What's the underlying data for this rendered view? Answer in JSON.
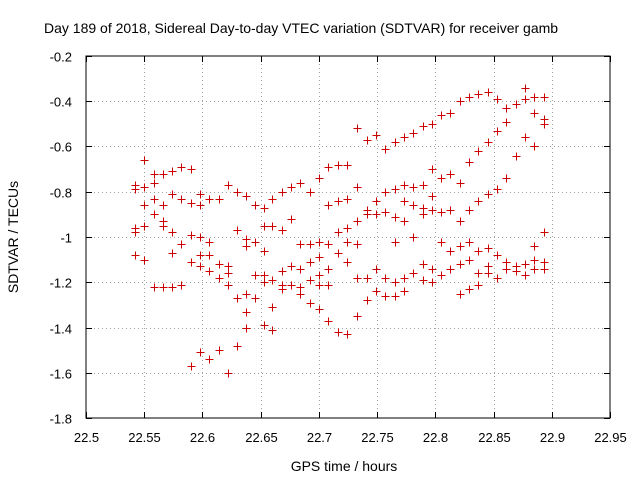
{
  "chart_data": {
    "type": "scatter",
    "title": "Day 189 of 2018, Sidereal Day-to-day VTEC variation (SDTVAR) for receiver gamb",
    "xlabel": "GPS time / hours",
    "ylabel": "SDTVAR / TECUs",
    "xlim": [
      22.5,
      22.95
    ],
    "ylim": [
      -1.8,
      -0.2
    ],
    "xticks": [
      "22.5",
      "22.55",
      "22.6",
      "22.65",
      "22.7",
      "22.75",
      "22.8",
      "22.85",
      "22.9",
      "22.95"
    ],
    "yticks": [
      "-0.2",
      "-0.4",
      "-0.6",
      "-0.8",
      "-1",
      "-1.2",
      "-1.4",
      "-1.6",
      "-1.8"
    ],
    "grid": true,
    "marker": "+",
    "color": "#cc0000",
    "series": [
      {
        "name": "SDTVAR",
        "points": [
          [
            22.542,
            -0.77
          ],
          [
            22.542,
            -0.79
          ],
          [
            22.542,
            -0.96
          ],
          [
            22.542,
            -0.98
          ],
          [
            22.542,
            -1.08
          ],
          [
            22.55,
            -0.66
          ],
          [
            22.55,
            -0.78
          ],
          [
            22.55,
            -0.86
          ],
          [
            22.55,
            -0.95
          ],
          [
            22.55,
            -1.1
          ],
          [
            22.558,
            -0.72
          ],
          [
            22.558,
            -0.76
          ],
          [
            22.558,
            -0.83
          ],
          [
            22.558,
            -0.9
          ],
          [
            22.558,
            -1.22
          ],
          [
            22.566,
            -0.72
          ],
          [
            22.566,
            -0.86
          ],
          [
            22.566,
            -0.93
          ],
          [
            22.566,
            -0.95
          ],
          [
            22.566,
            -1.22
          ],
          [
            22.574,
            -0.71
          ],
          [
            22.574,
            -0.81
          ],
          [
            22.574,
            -0.98
          ],
          [
            22.574,
            -1.07
          ],
          [
            22.574,
            -1.22
          ],
          [
            22.582,
            -0.69
          ],
          [
            22.582,
            -0.83
          ],
          [
            22.582,
            -1.03
          ],
          [
            22.582,
            -1.21
          ],
          [
            22.59,
            -0.7
          ],
          [
            22.59,
            -0.85
          ],
          [
            22.59,
            -0.99
          ],
          [
            22.59,
            -1.11
          ],
          [
            22.59,
            -1.57
          ],
          [
            22.598,
            -0.81
          ],
          [
            22.598,
            -0.86
          ],
          [
            22.598,
            -1.0
          ],
          [
            22.598,
            -1.08
          ],
          [
            22.598,
            -1.13
          ],
          [
            22.598,
            -1.51
          ],
          [
            22.606,
            -0.83
          ],
          [
            22.606,
            -1.02
          ],
          [
            22.606,
            -1.08
          ],
          [
            22.606,
            -1.15
          ],
          [
            22.606,
            -1.54
          ],
          [
            22.614,
            -0.83
          ],
          [
            22.614,
            -1.12
          ],
          [
            22.614,
            -1.18
          ],
          [
            22.614,
            -1.5
          ],
          [
            22.622,
            -0.77
          ],
          [
            22.622,
            -1.13
          ],
          [
            22.622,
            -1.16
          ],
          [
            22.622,
            -1.21
          ],
          [
            22.622,
            -1.6
          ],
          [
            22.63,
            -0.8
          ],
          [
            22.63,
            -0.97
          ],
          [
            22.63,
            -1.27
          ],
          [
            22.63,
            -1.48
          ],
          [
            22.637,
            -0.82
          ],
          [
            22.637,
            -1.01
          ],
          [
            22.637,
            -1.04
          ],
          [
            22.637,
            -1.25
          ],
          [
            22.637,
            -1.33
          ],
          [
            22.637,
            -1.4
          ],
          [
            22.645,
            -0.86
          ],
          [
            22.645,
            -1.02
          ],
          [
            22.645,
            -1.17
          ],
          [
            22.645,
            -1.27
          ],
          [
            22.653,
            -0.87
          ],
          [
            22.653,
            -0.95
          ],
          [
            22.653,
            -1.06
          ],
          [
            22.653,
            -1.17
          ],
          [
            22.653,
            -1.2
          ],
          [
            22.653,
            -1.39
          ],
          [
            22.66,
            -0.83
          ],
          [
            22.66,
            -0.95
          ],
          [
            22.66,
            -1.19
          ],
          [
            22.66,
            -1.31
          ],
          [
            22.66,
            -1.41
          ],
          [
            22.668,
            -0.8
          ],
          [
            22.668,
            -0.97
          ],
          [
            22.668,
            -1.15
          ],
          [
            22.668,
            -1.21
          ],
          [
            22.668,
            -1.23
          ],
          [
            22.676,
            -0.78
          ],
          [
            22.676,
            -0.92
          ],
          [
            22.676,
            -1.13
          ],
          [
            22.676,
            -1.21
          ],
          [
            22.684,
            -0.76
          ],
          [
            22.684,
            -1.03
          ],
          [
            22.684,
            -1.14
          ],
          [
            22.684,
            -1.22
          ],
          [
            22.684,
            -1.25
          ],
          [
            22.692,
            -0.8
          ],
          [
            22.692,
            -1.03
          ],
          [
            22.692,
            -1.11
          ],
          [
            22.692,
            -1.19
          ],
          [
            22.692,
            -1.29
          ],
          [
            22.7,
            -0.74
          ],
          [
            22.7,
            -1.02
          ],
          [
            22.7,
            -1.09
          ],
          [
            22.7,
            -1.17
          ],
          [
            22.7,
            -1.21
          ],
          [
            22.7,
            -1.32
          ],
          [
            22.708,
            -0.69
          ],
          [
            22.708,
            -0.86
          ],
          [
            22.708,
            -1.03
          ],
          [
            22.708,
            -1.14
          ],
          [
            22.708,
            -1.21
          ],
          [
            22.708,
            -1.37
          ],
          [
            22.716,
            -0.68
          ],
          [
            22.716,
            -0.84
          ],
          [
            22.716,
            -0.98
          ],
          [
            22.716,
            -1.07
          ],
          [
            22.716,
            -1.42
          ],
          [
            22.724,
            -0.68
          ],
          [
            22.724,
            -0.83
          ],
          [
            22.724,
            -0.96
          ],
          [
            22.724,
            -1.02
          ],
          [
            22.724,
            -1.11
          ],
          [
            22.724,
            -1.43
          ],
          [
            22.733,
            -0.52
          ],
          [
            22.733,
            -0.78
          ],
          [
            22.733,
            -0.93
          ],
          [
            22.733,
            -1.03
          ],
          [
            22.733,
            -1.18
          ],
          [
            22.733,
            -1.35
          ],
          [
            22.741,
            -0.57
          ],
          [
            22.741,
            -0.88
          ],
          [
            22.741,
            -0.9
          ],
          [
            22.741,
            -1.18
          ],
          [
            22.741,
            -1.28
          ],
          [
            22.749,
            -0.55
          ],
          [
            22.749,
            -0.84
          ],
          [
            22.749,
            -0.9
          ],
          [
            22.749,
            -1.14
          ],
          [
            22.749,
            -1.24
          ],
          [
            22.757,
            -0.61
          ],
          [
            22.757,
            -0.8
          ],
          [
            22.757,
            -0.89
          ],
          [
            22.757,
            -1.18
          ],
          [
            22.757,
            -1.26
          ],
          [
            22.765,
            -0.58
          ],
          [
            22.765,
            -0.79
          ],
          [
            22.765,
            -0.91
          ],
          [
            22.765,
            -1.02
          ],
          [
            22.765,
            -1.2
          ],
          [
            22.765,
            -1.26
          ],
          [
            22.773,
            -0.56
          ],
          [
            22.773,
            -0.77
          ],
          [
            22.773,
            -0.84
          ],
          [
            22.773,
            -0.93
          ],
          [
            22.773,
            -1.18
          ],
          [
            22.773,
            -1.24
          ],
          [
            22.781,
            -0.54
          ],
          [
            22.781,
            -0.78
          ],
          [
            22.781,
            -0.86
          ],
          [
            22.781,
            -1.0
          ],
          [
            22.781,
            -1.16
          ],
          [
            22.789,
            -0.51
          ],
          [
            22.789,
            -0.77
          ],
          [
            22.789,
            -0.87
          ],
          [
            22.789,
            -0.9
          ],
          [
            22.789,
            -1.12
          ],
          [
            22.789,
            -1.19
          ],
          [
            22.797,
            -0.5
          ],
          [
            22.797,
            -0.7
          ],
          [
            22.797,
            -0.82
          ],
          [
            22.797,
            -0.88
          ],
          [
            22.797,
            -1.14
          ],
          [
            22.797,
            -1.2
          ],
          [
            22.805,
            -0.46
          ],
          [
            22.805,
            -0.74
          ],
          [
            22.805,
            -0.89
          ],
          [
            22.805,
            -1.02
          ],
          [
            22.805,
            -1.17
          ],
          [
            22.813,
            -0.45
          ],
          [
            22.813,
            -0.72
          ],
          [
            22.813,
            -0.88
          ],
          [
            22.813,
            -1.06
          ],
          [
            22.813,
            -1.14
          ],
          [
            22.821,
            -0.4
          ],
          [
            22.821,
            -0.76
          ],
          [
            22.821,
            -0.93
          ],
          [
            22.821,
            -1.04
          ],
          [
            22.821,
            -1.12
          ],
          [
            22.821,
            -1.25
          ],
          [
            22.829,
            -0.38
          ],
          [
            22.829,
            -0.67
          ],
          [
            22.829,
            -0.88
          ],
          [
            22.829,
            -1.02
          ],
          [
            22.829,
            -1.1
          ],
          [
            22.829,
            -1.23
          ],
          [
            22.837,
            -0.37
          ],
          [
            22.837,
            -0.62
          ],
          [
            22.837,
            -0.84
          ],
          [
            22.837,
            -1.06
          ],
          [
            22.837,
            -1.16
          ],
          [
            22.837,
            -1.21
          ],
          [
            22.845,
            -0.36
          ],
          [
            22.845,
            -0.58
          ],
          [
            22.845,
            -0.81
          ],
          [
            22.845,
            -1.05
          ],
          [
            22.845,
            -1.13
          ],
          [
            22.845,
            -1.16
          ],
          [
            22.853,
            -0.39
          ],
          [
            22.853,
            -0.53
          ],
          [
            22.853,
            -0.79
          ],
          [
            22.853,
            -1.08
          ],
          [
            22.853,
            -1.18
          ],
          [
            22.861,
            -0.43
          ],
          [
            22.861,
            -0.49
          ],
          [
            22.861,
            -0.74
          ],
          [
            22.861,
            -1.11
          ],
          [
            22.861,
            -1.14
          ],
          [
            22.869,
            -0.41
          ],
          [
            22.869,
            -0.64
          ],
          [
            22.869,
            -1.13
          ],
          [
            22.869,
            -1.15
          ],
          [
            22.877,
            -0.34
          ],
          [
            22.877,
            -0.39
          ],
          [
            22.877,
            -0.56
          ],
          [
            22.877,
            -1.12
          ],
          [
            22.877,
            -1.17
          ],
          [
            22.885,
            -0.38
          ],
          [
            22.885,
            -0.45
          ],
          [
            22.885,
            -0.6
          ],
          [
            22.885,
            -1.04
          ],
          [
            22.885,
            -1.1
          ],
          [
            22.885,
            -1.14
          ],
          [
            22.893,
            -0.38
          ],
          [
            22.893,
            -0.48
          ],
          [
            22.893,
            -0.5
          ],
          [
            22.893,
            -0.98
          ],
          [
            22.893,
            -1.11
          ],
          [
            22.893,
            -1.14
          ]
        ]
      }
    ]
  }
}
